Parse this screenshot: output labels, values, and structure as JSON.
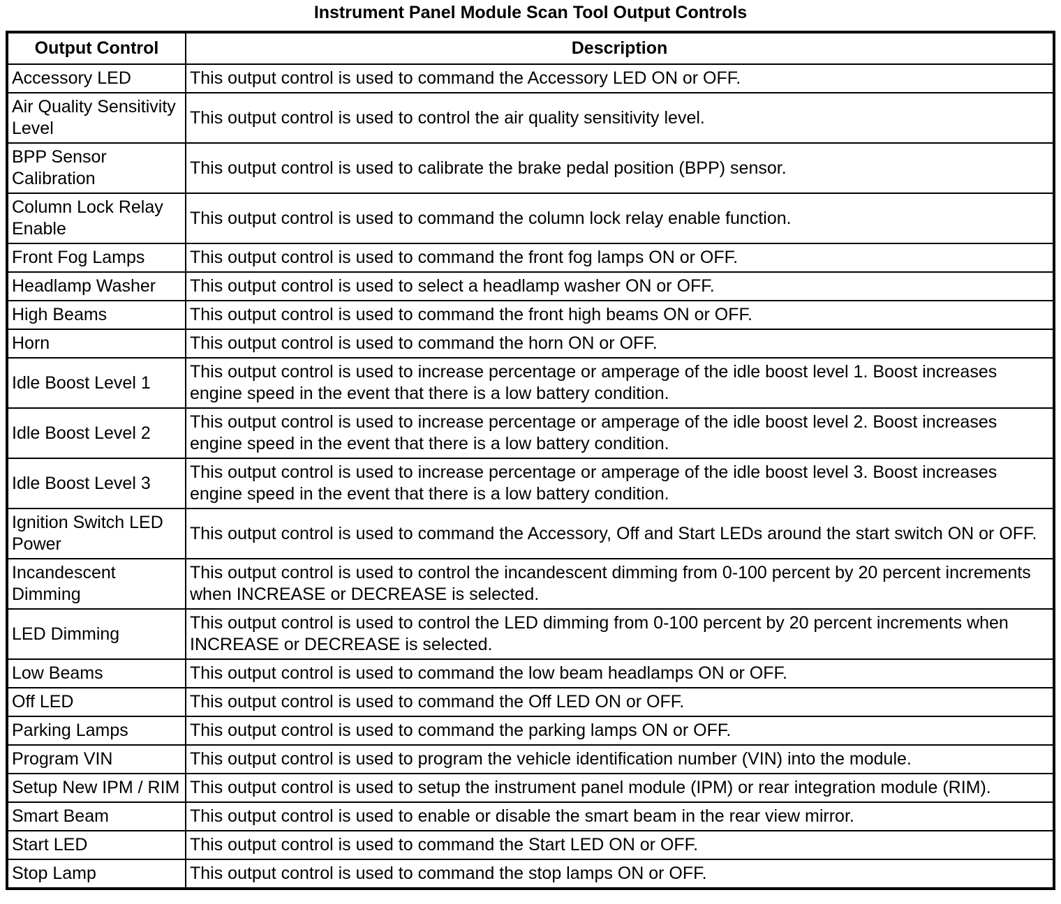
{
  "title": "Instrument Panel Module Scan Tool Output Controls",
  "table": {
    "headers": [
      "Output Control",
      "Description"
    ],
    "rows": [
      {
        "control": "Accessory LED",
        "description": "This output control is used to command the Accessory LED ON or OFF."
      },
      {
        "control": "Air Quality Sensitivity Level",
        "description": "This output control is used to control the air quality sensitivity level."
      },
      {
        "control": "BPP Sensor Calibration",
        "description": "This output control is used to calibrate the brake pedal position (BPP) sensor."
      },
      {
        "control": "Column Lock Relay Enable",
        "description": "This output control is used to command the column lock relay enable function."
      },
      {
        "control": "Front Fog Lamps",
        "description": "This output control is used to command the front fog lamps ON or OFF."
      },
      {
        "control": "Headlamp Washer",
        "description": "This output control is used to select a headlamp washer ON or OFF."
      },
      {
        "control": "High Beams",
        "description": "This output control is used to command the front high beams ON or OFF."
      },
      {
        "control": "Horn",
        "description": "This output control is used to command the horn ON or OFF."
      },
      {
        "control": "Idle Boost Level 1",
        "description": "This output control is used to increase percentage or amperage of the idle boost level 1. Boost increases engine speed in the event that there is a low battery condition."
      },
      {
        "control": "Idle Boost Level 2",
        "description": "This output control is used to increase percentage or amperage of the idle boost level 2. Boost increases engine speed in the event that there is a low battery condition."
      },
      {
        "control": "Idle Boost Level 3",
        "description": "This output control is used to increase percentage or amperage of the idle boost level 3. Boost increases engine speed in the event that there is a low battery condition."
      },
      {
        "control": "Ignition Switch LED Power",
        "description": "This output control is used to command the Accessory, Off and Start LEDs around the start switch ON or OFF."
      },
      {
        "control": "Incandescent Dimming",
        "description": "This output control is used to control the incandescent dimming from 0-100 percent by 20 percent increments when INCREASE or DECREASE is selected."
      },
      {
        "control": "LED Dimming",
        "description": "This output control is used to control the LED dimming from 0-100 percent by 20 percent increments when INCREASE or DECREASE is selected."
      },
      {
        "control": "Low Beams",
        "description": "This output control is used to command the low beam headlamps ON or OFF."
      },
      {
        "control": "Off LED",
        "description": "This output control is used to command the Off LED ON or OFF."
      },
      {
        "control": "Parking Lamps",
        "description": "This output control is used to command the parking lamps ON or OFF."
      },
      {
        "control": "Program VIN",
        "description": "This output control is used to program the vehicle identification number (VIN) into the module."
      },
      {
        "control": "Setup New IPM / RIM",
        "description": "This output control is used to setup the instrument panel module (IPM) or rear integration module (RIM)."
      },
      {
        "control": "Smart Beam",
        "description": "This output control is used to enable or disable the smart beam in the rear view mirror."
      },
      {
        "control": "Start LED",
        "description": "This output control is used to command the Start LED ON or OFF."
      },
      {
        "control": "Stop Lamp",
        "description": "This output control is used to command the stop lamps ON or OFF."
      }
    ]
  }
}
